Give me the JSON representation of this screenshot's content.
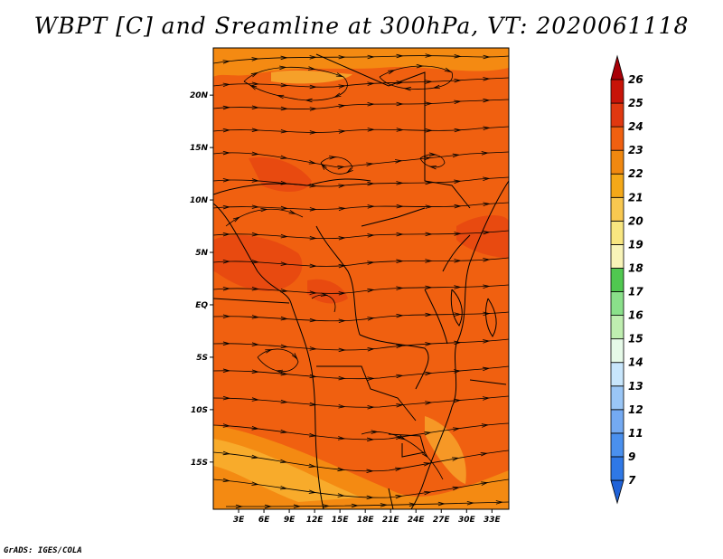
{
  "title": "WBPT [C] and Sreamline at 300hPa, VT: 2020061118",
  "credit": "GrADS: IGES/COLA",
  "map": {
    "lat_labels": [
      {
        "label": "20N",
        "lat": 20
      },
      {
        "label": "15N",
        "lat": 15
      },
      {
        "label": "10N",
        "lat": 10
      },
      {
        "label": "5N",
        "lat": 5
      },
      {
        "label": "EQ",
        "lat": 0
      },
      {
        "label": "5S",
        "lat": -5
      },
      {
        "label": "10S",
        "lat": -10
      },
      {
        "label": "15S",
        "lat": -15
      }
    ],
    "lon_labels": [
      {
        "label": "3E",
        "lon": 3
      },
      {
        "label": "6E",
        "lon": 6
      },
      {
        "label": "9E",
        "lon": 9
      },
      {
        "label": "12E",
        "lon": 12
      },
      {
        "label": "15E",
        "lon": 15
      },
      {
        "label": "18E",
        "lon": 18
      },
      {
        "label": "21E",
        "lon": 21
      },
      {
        "label": "24E",
        "lon": 24
      },
      {
        "label": "27E",
        "lon": 27
      },
      {
        "label": "30E",
        "lon": 30
      },
      {
        "label": "33E",
        "lon": 33
      }
    ],
    "lon_range": [
      0,
      35
    ],
    "lat_range": [
      -19.5,
      24.5
    ],
    "base_color": "#f06010"
  },
  "colorbar": {
    "labels": [
      "7",
      "9",
      "11",
      "12",
      "13",
      "14",
      "15",
      "16",
      "17",
      "18",
      "19",
      "20",
      "21",
      "22",
      "23",
      "24",
      "25",
      "26"
    ],
    "colors": [
      "#1f62d8",
      "#2f78e6",
      "#4a90ee",
      "#74aaf2",
      "#9ac6f6",
      "#c8e6fc",
      "#e6fae8",
      "#bfeeb0",
      "#8ae08a",
      "#50c850",
      "#f8f4b8",
      "#f8e680",
      "#f8c850",
      "#f4a818",
      "#f08810",
      "#f06010",
      "#e03810",
      "#c81408",
      "#a80008"
    ]
  }
}
